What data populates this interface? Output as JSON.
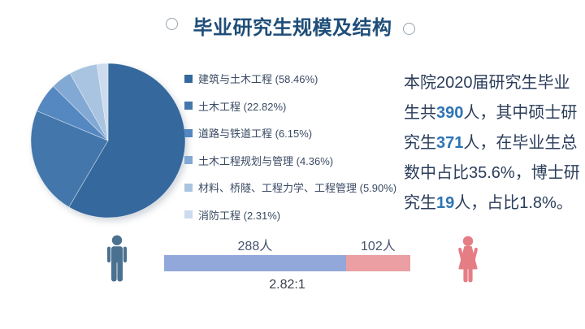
{
  "header": {
    "title": "毕业研究生规模及结构"
  },
  "theme": {
    "background": "#ffffff",
    "title_color": "#1f4e79",
    "decoration_circle_color": "#97a3ae",
    "body_text_color": "#2b3d5a",
    "highlight_color": "#2e74b5",
    "legend_text_color": "#3a4a63"
  },
  "stats_text": {
    "segments": [
      {
        "text": "本院2020届研究生毕业生共",
        "highlight": false
      },
      {
        "text": "390",
        "highlight": true
      },
      {
        "text": "人，其中硕士研究生",
        "highlight": false
      },
      {
        "text": "371",
        "highlight": true
      },
      {
        "text": "人，在毕业生总数中占比35.6%，博士研究生",
        "highlight": false
      },
      {
        "text": "19",
        "highlight": true
      },
      {
        "text": "人，占比1.8%。",
        "highlight": false
      }
    ]
  },
  "chart_data": [
    {
      "type": "pie",
      "title": "毕业研究生规模及结构",
      "legend_position": "right-of-pie",
      "unit": "percent",
      "start_angle_deg": -90,
      "direction": "clockwise",
      "items": [
        {
          "label": "建筑与土木工程",
          "value": 58.46,
          "color": "#35689c"
        },
        {
          "label": "土木工程",
          "value": 22.82,
          "color": "#4377ac"
        },
        {
          "label": "道路与铁道工程",
          "value": 6.15,
          "color": "#5587c1"
        },
        {
          "label": "土木工程规划与管理",
          "value": 4.36,
          "color": "#82a8d4"
        },
        {
          "label": "材料、桥隧、工程力学、工程管理",
          "value": 5.9,
          "color": "#a9c4e0"
        },
        {
          "label": "消防工程",
          "value": 2.31,
          "color": "#ccdbed"
        }
      ]
    },
    {
      "type": "bar",
      "subtype": "horizontal-stacked",
      "categories": [
        "male",
        "female"
      ],
      "values": [
        288,
        102
      ],
      "value_labels": [
        "288人",
        "102人"
      ],
      "colors": [
        "#93a8da",
        "#eb9fa3"
      ],
      "ratio_label": "2.82:1"
    }
  ],
  "gender_bar": {
    "male_label": "288人",
    "female_label": "102人",
    "ratio": "2.82:1",
    "male_icon_color": "#4b7191",
    "female_icon_color": "#e57d85"
  }
}
